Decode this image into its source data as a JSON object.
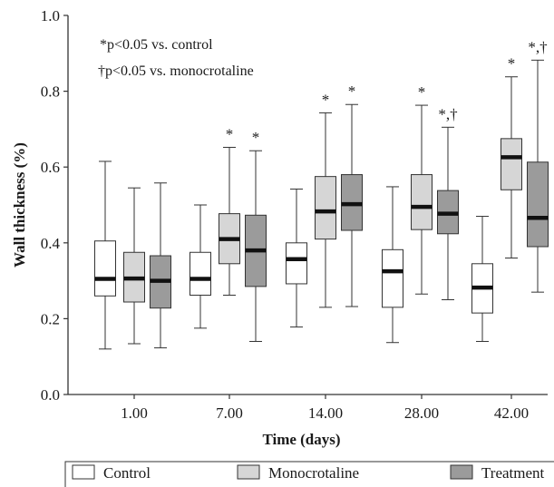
{
  "chart_data": {
    "type": "box",
    "title": "",
    "xlabel": "Time (days)",
    "ylabel": "Wall thickness (%)",
    "ylim": [
      0.0,
      1.0
    ],
    "yticks": [
      "0.0",
      "0.2",
      "0.4",
      "0.6",
      "0.8",
      "1.0"
    ],
    "categories": [
      "1.00",
      "7.00",
      "14.00",
      "28.00",
      "42.00"
    ],
    "legend_position": "bottom",
    "annotations": [
      "*p<0.05 vs. control",
      "†p<0.05 vs. monocrotaline"
    ],
    "series": [
      {
        "name": "Control",
        "color": "#ffffff",
        "boxes": [
          {
            "min": 0.12,
            "q1": 0.26,
            "median": 0.305,
            "q3": 0.405,
            "max": 0.615,
            "mark": ""
          },
          {
            "min": 0.175,
            "q1": 0.262,
            "median": 0.305,
            "q3": 0.375,
            "max": 0.5,
            "mark": ""
          },
          {
            "min": 0.178,
            "q1": 0.292,
            "median": 0.357,
            "q3": 0.4,
            "max": 0.542,
            "mark": ""
          },
          {
            "min": 0.137,
            "q1": 0.23,
            "median": 0.325,
            "q3": 0.382,
            "max": 0.548,
            "mark": ""
          },
          {
            "min": 0.14,
            "q1": 0.215,
            "median": 0.282,
            "q3": 0.345,
            "max": 0.47,
            "mark": ""
          }
        ]
      },
      {
        "name": "Monocrotaline",
        "color": "#d6d6d6",
        "boxes": [
          {
            "min": 0.134,
            "q1": 0.244,
            "median": 0.306,
            "q3": 0.375,
            "max": 0.545,
            "mark": ""
          },
          {
            "min": 0.262,
            "q1": 0.345,
            "median": 0.41,
            "q3": 0.477,
            "max": 0.652,
            "mark": "*"
          },
          {
            "min": 0.23,
            "q1": 0.41,
            "median": 0.483,
            "q3": 0.575,
            "max": 0.743,
            "mark": "*"
          },
          {
            "min": 0.265,
            "q1": 0.435,
            "median": 0.495,
            "q3": 0.58,
            "max": 0.763,
            "mark": "*"
          },
          {
            "min": 0.36,
            "q1": 0.54,
            "median": 0.626,
            "q3": 0.675,
            "max": 0.838,
            "mark": "*"
          }
        ]
      },
      {
        "name": "Treatment",
        "color": "#9b9b9b",
        "boxes": [
          {
            "min": 0.123,
            "q1": 0.228,
            "median": 0.3,
            "q3": 0.366,
            "max": 0.558,
            "mark": ""
          },
          {
            "min": 0.14,
            "q1": 0.285,
            "median": 0.38,
            "q3": 0.473,
            "max": 0.643,
            "mark": "*"
          },
          {
            "min": 0.232,
            "q1": 0.433,
            "median": 0.502,
            "q3": 0.58,
            "max": 0.765,
            "mark": "*"
          },
          {
            "min": 0.25,
            "q1": 0.424,
            "median": 0.477,
            "q3": 0.538,
            "max": 0.705,
            "mark": "*,†"
          },
          {
            "min": 0.27,
            "q1": 0.39,
            "median": 0.466,
            "q3": 0.613,
            "max": 0.882,
            "mark": "*,†"
          }
        ]
      }
    ]
  }
}
